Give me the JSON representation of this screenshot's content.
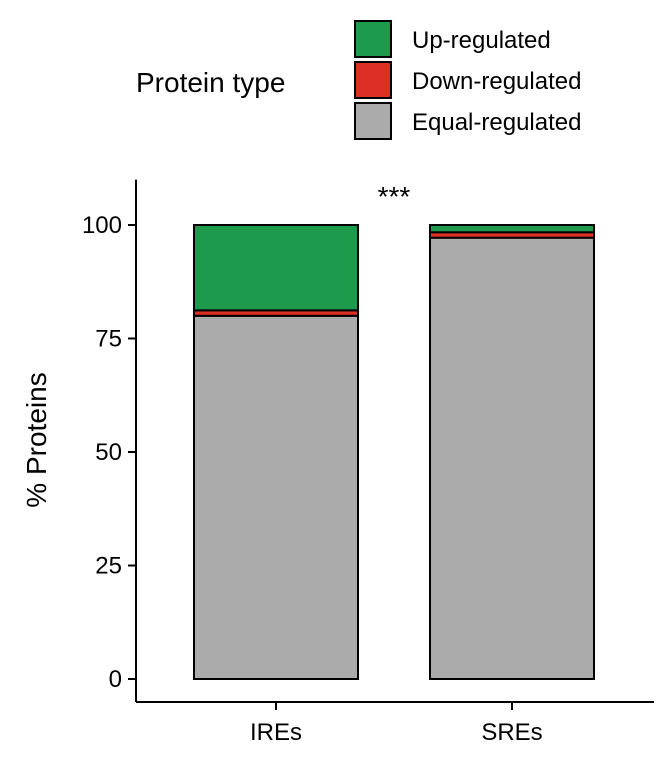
{
  "chart_data": {
    "type": "bar",
    "stacked": true,
    "percent": true,
    "categories": [
      "IREs",
      "SREs"
    ],
    "series": [
      {
        "name": "Equal-regulated",
        "color": "#ABABAB",
        "values": [
          80,
          97.2
        ]
      },
      {
        "name": "Down-regulated",
        "color": "#DC3026",
        "values": [
          1.2,
          1.2
        ]
      },
      {
        "name": "Up-regulated",
        "color": "#1D9A4C",
        "values": [
          18.8,
          1.6
        ]
      }
    ],
    "ylabel": "% Proteins",
    "xlabel": "",
    "ylim": [
      -5,
      110
    ],
    "yticks": [
      0,
      25,
      50,
      75,
      100
    ],
    "grid": false,
    "legend": {
      "title": "Protein type",
      "position": "top",
      "entries": [
        "Up-regulated",
        "Down-regulated",
        "Equal-regulated"
      ]
    },
    "annotation": "***"
  }
}
